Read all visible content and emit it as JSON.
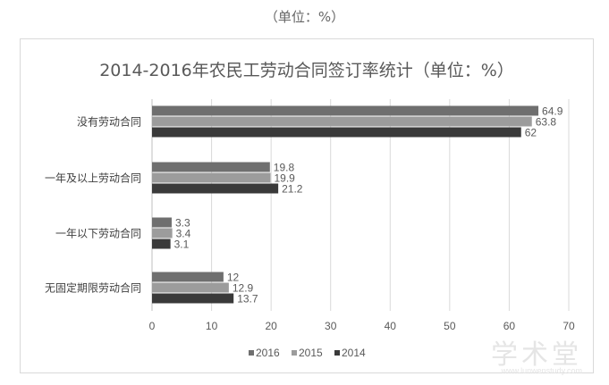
{
  "caption": "（单位：%）",
  "watermark": {
    "text": "学术堂",
    "url": "www.lunwenstudy.com"
  },
  "chart_data": {
    "type": "bar",
    "orientation": "horizontal",
    "title": "2014-2016年农民工劳动合同签订率统计（单位：%）",
    "categories": [
      "没有劳动合同",
      "一年及以上劳动合同",
      "一年以下劳动合同",
      "无固定期限劳动合同"
    ],
    "series": [
      {
        "name": "2016",
        "color": "#6f6f6f",
        "values": [
          64.9,
          19.8,
          3.3,
          12
        ]
      },
      {
        "name": "2015",
        "color": "#9c9c9c",
        "values": [
          63.8,
          19.9,
          3.4,
          12.9
        ]
      },
      {
        "name": "2014",
        "color": "#3a3a3a",
        "values": [
          62,
          21.2,
          3.1,
          13.7
        ]
      }
    ],
    "value_labels": [
      [
        "64.9",
        "19.8",
        "3.3",
        "12"
      ],
      [
        "63.8",
        "19.9",
        "3.4",
        "12.9"
      ],
      [
        "62",
        "21.2",
        "3.1",
        "13.7"
      ]
    ],
    "xlim": [
      0,
      70
    ],
    "xticks": [
      0,
      10,
      20,
      30,
      40,
      50,
      60,
      70
    ],
    "grid": true,
    "legend": "bottom"
  }
}
